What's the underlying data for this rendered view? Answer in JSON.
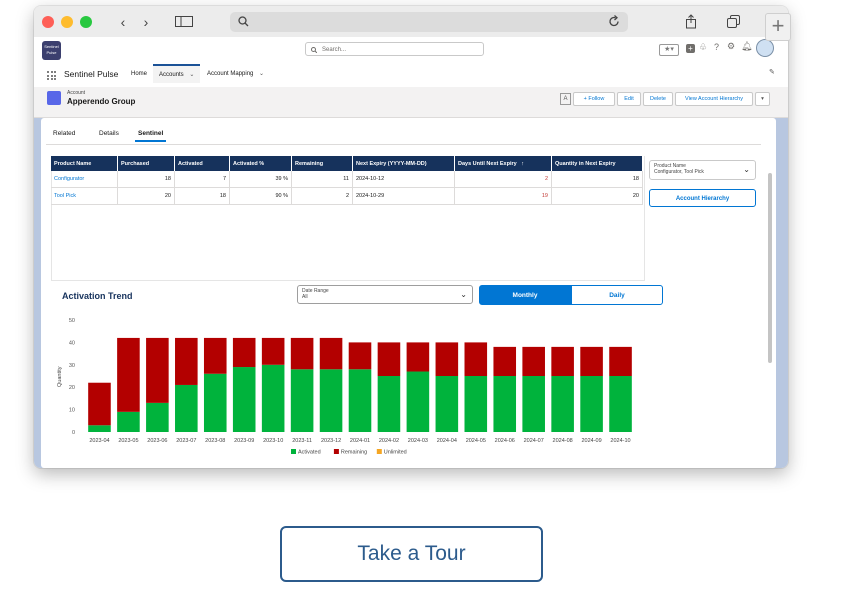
{
  "browser": {
    "colors": {
      "close": "#fe5f57",
      "minimize": "#febc2e",
      "maximize": "#28c840"
    }
  },
  "header": {
    "logo_text": "Sentinel Pulse",
    "search_placeholder": "Search...",
    "app_name": "Sentinel Pulse",
    "nav": [
      {
        "label": "Home"
      },
      {
        "label": "Accounts"
      },
      {
        "label": "Account Mapping"
      }
    ]
  },
  "record": {
    "object_label": "Account",
    "name": "Apperendo Group",
    "buttons": {
      "follow": "+ Follow",
      "edit": "Edit",
      "delete": "Delete",
      "hierarchy": "View Account Hierarchy"
    }
  },
  "tabs": [
    {
      "label": "Related"
    },
    {
      "label": "Details"
    },
    {
      "label": "Sentinel"
    }
  ],
  "table": {
    "headers": [
      "Product Name",
      "Purchased",
      "Activated",
      "Activated %",
      "Remaining",
      "Next Expiry (YYYY-MM-DD)",
      "Days Until Next Expiry",
      "Quantity in Next Expiry"
    ],
    "sort_indicator": "↑",
    "rows": [
      {
        "product": "Configurator",
        "purchased": "18",
        "activated": "7",
        "pct": "39 %",
        "remaining": "11",
        "expiry": "2024-10-12",
        "days": "2",
        "qty": "18"
      },
      {
        "product": "Tool Pick",
        "purchased": "20",
        "activated": "18",
        "pct": "90 %",
        "remaining": "2",
        "expiry": "2024-10-29",
        "days": "19",
        "qty": "20"
      }
    ]
  },
  "trend": {
    "title": "Activation Trend",
    "date_range_label": "Date Range",
    "date_range_value": "All",
    "monthly": "Monthly",
    "daily": "Daily"
  },
  "sidebar": {
    "product_label": "Product Name",
    "product_value": "Configurator, Tool Pick",
    "hierarchy_button": "Account Hierarchy"
  },
  "chart_data": {
    "type": "bar",
    "stacked": true,
    "ylabel": "Quantity",
    "ylim": [
      0,
      50
    ],
    "yticks": [
      0,
      10,
      20,
      30,
      40,
      50
    ],
    "categories": [
      "2023-04",
      "2023-05",
      "2023-06",
      "2023-07",
      "2023-08",
      "2023-09",
      "2023-10",
      "2023-11",
      "2023-12",
      "2024-01",
      "2024-02",
      "2024-03",
      "2024-04",
      "2024-05",
      "2024-06",
      "2024-07",
      "2024-08",
      "2024-09",
      "2024-10"
    ],
    "series": [
      {
        "name": "Activated",
        "color": "#00b33c",
        "values": [
          3,
          9,
          13,
          21,
          26,
          29,
          30,
          28,
          28,
          28,
          25,
          27,
          25,
          25,
          25,
          25,
          25,
          25,
          25
        ]
      },
      {
        "name": "Remaining",
        "color": "#b30000",
        "values": [
          19,
          33,
          29,
          21,
          16,
          13,
          12,
          14,
          14,
          12,
          15,
          13,
          15,
          15,
          13,
          13,
          13,
          13,
          13
        ]
      },
      {
        "name": "Unlimited",
        "color": "#f5a623",
        "values": [
          0,
          0,
          0,
          0,
          0,
          0,
          0,
          0,
          0,
          0,
          0,
          0,
          0,
          0,
          0,
          0,
          0,
          0,
          0
        ]
      }
    ],
    "legend": "bottom",
    "grid": false
  },
  "cta": {
    "label": "Take a Tour"
  }
}
